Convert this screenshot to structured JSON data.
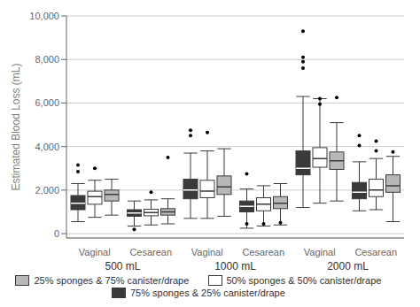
{
  "chart_data": {
    "type": "box",
    "ylabel": "Estimated Blood Loss (mL)",
    "categories": [
      "Vaginal",
      "Cesarean",
      "Vaginal",
      "Cesarean",
      "Vaginal",
      "Cesarean"
    ],
    "groups": [
      "500 mL",
      "1000 mL",
      "2000 mL"
    ],
    "ylim": [
      -200,
      10000
    ],
    "yticks": [
      0,
      {
        "value": 2000,
        "label": "2,000"
      },
      {
        "value": 4000,
        "label": "4,000"
      },
      {
        "value": 6000,
        "label": "6,000"
      },
      {
        "value": 8000,
        "label": "8,000"
      },
      {
        "value": 10000,
        "label": "10,000"
      }
    ],
    "grid": true,
    "legend": "bottom",
    "series": [
      {
        "name": "75% sponges & 25% canister/drape",
        "color": "#3a3a3a",
        "values": [
          {
            "whislo": 550,
            "q1": 1100,
            "med": 1400,
            "q3": 1750,
            "whishi": 2300,
            "fliers": [
              2850,
              3150
            ]
          },
          {
            "whislo": 350,
            "q1": 800,
            "med": 950,
            "q3": 1100,
            "whishi": 1500,
            "fliers": [
              200
            ]
          },
          {
            "whislo": 700,
            "q1": 1600,
            "med": 2000,
            "q3": 2500,
            "whishi": 3700,
            "fliers": [
              4500,
              4750
            ]
          },
          {
            "whislo": 250,
            "q1": 1000,
            "med": 1250,
            "q3": 1500,
            "whishi": 2050,
            "fliers": [
              450,
              2750
            ]
          },
          {
            "whislo": 1200,
            "q1": 2700,
            "med": 3000,
            "q3": 3800,
            "whishi": 6300,
            "fliers": [
              7600,
              8100,
              9300,
              7900
            ]
          },
          {
            "whislo": 1050,
            "q1": 1600,
            "med": 1900,
            "q3": 2350,
            "whishi": 3300,
            "fliers": [
              4050,
              4500
            ]
          }
        ]
      },
      {
        "name": "50% sponges & 50% canister/drape",
        "color": "#ffffff",
        "values": [
          {
            "whislo": 750,
            "q1": 1350,
            "med": 1700,
            "q3": 1950,
            "whishi": 2450,
            "fliers": [
              3000
            ]
          },
          {
            "whislo": 400,
            "q1": 820,
            "med": 970,
            "q3": 1120,
            "whishi": 1550,
            "fliers": [
              1900
            ]
          },
          {
            "whislo": 700,
            "q1": 1650,
            "med": 1950,
            "q3": 2450,
            "whishi": 3800,
            "fliers": [
              4650
            ]
          },
          {
            "whislo": 350,
            "q1": 1050,
            "med": 1350,
            "q3": 1650,
            "whishi": 2200,
            "fliers": [
              450
            ]
          },
          {
            "whislo": 1400,
            "q1": 3050,
            "med": 3450,
            "q3": 3950,
            "whishi": 6200,
            "fliers": [
              6200,
              5950
            ]
          },
          {
            "whislo": 1100,
            "q1": 1700,
            "med": 2000,
            "q3": 2500,
            "whishi": 3450,
            "fliers": [
              3800,
              4250
            ]
          }
        ]
      },
      {
        "name": "25% sponges & 75% canister/drape",
        "color": "#b8b8b8",
        "values": [
          {
            "whislo": 850,
            "q1": 1500,
            "med": 1800,
            "q3": 2000,
            "whishi": 2500,
            "fliers": []
          },
          {
            "whislo": 450,
            "q1": 850,
            "med": 1000,
            "q3": 1150,
            "whishi": 1600,
            "fliers": [
              3500
            ]
          },
          {
            "whislo": 800,
            "q1": 1800,
            "med": 2150,
            "q3": 2650,
            "whishi": 3900,
            "fliers": []
          },
          {
            "whislo": 400,
            "q1": 1150,
            "med": 1400,
            "q3": 1700,
            "whishi": 2300,
            "fliers": [
              500
            ]
          },
          {
            "whislo": 1500,
            "q1": 2950,
            "med": 3350,
            "q3": 3750,
            "whishi": 5100,
            "fliers": [
              6250
            ]
          },
          {
            "whislo": 550,
            "q1": 1900,
            "med": 2200,
            "q3": 2700,
            "whishi": 3550,
            "fliers": [
              3750
            ]
          }
        ]
      }
    ]
  }
}
